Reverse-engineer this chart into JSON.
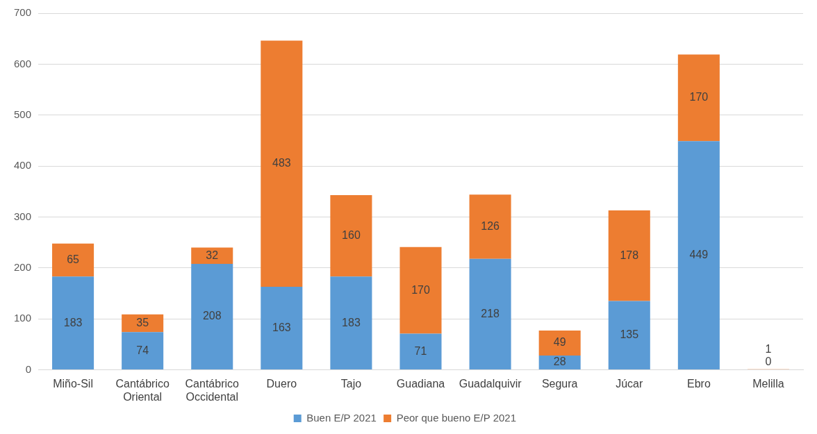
{
  "chart_data": {
    "type": "bar",
    "stacked": true,
    "categories": [
      "Miño-Sil",
      "Cantábrico Oriental",
      "Cantábrico Occidental",
      "Duero",
      "Tajo",
      "Guadiana",
      "Guadalquivir",
      "Segura",
      "Júcar",
      "Ebro",
      "Melilla"
    ],
    "series": [
      {
        "name": "Buen E/P 2021",
        "color": "#5b9bd5",
        "values": [
          183,
          74,
          208,
          163,
          183,
          71,
          218,
          28,
          135,
          449,
          0
        ]
      },
      {
        "name": "Peor que bueno E/P 2021",
        "color": "#ed7d31",
        "values": [
          65,
          35,
          32,
          483,
          160,
          170,
          126,
          49,
          178,
          170,
          1
        ]
      }
    ],
    "ylim": [
      0,
      700
    ],
    "yticks": [
      0,
      100,
      200,
      300,
      400,
      500,
      600,
      700
    ],
    "grid": "y",
    "legend": "bottom",
    "data_labels": true
  }
}
